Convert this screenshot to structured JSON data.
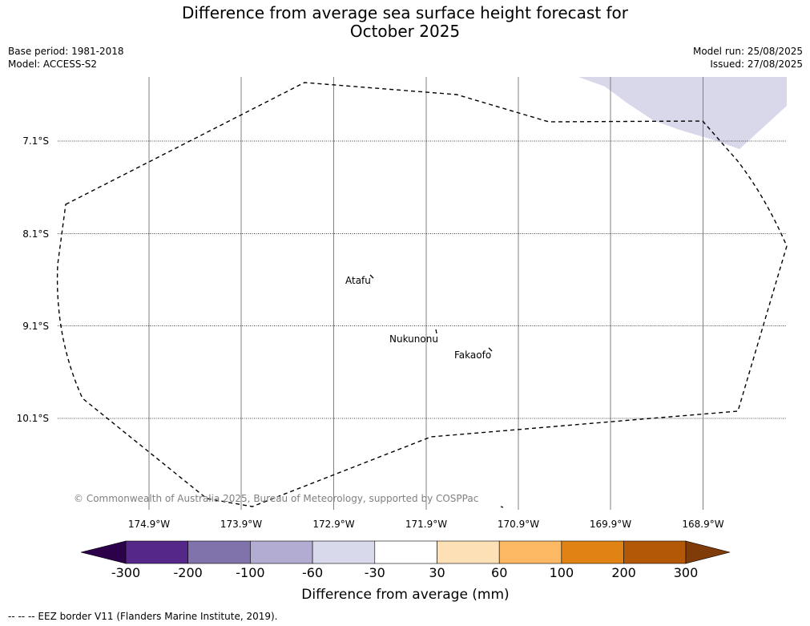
{
  "title_line1": "Difference from average sea surface height forecast for",
  "title_line2": "October 2025",
  "info": {
    "base_period": "Base period: 1981-2018",
    "model": "Model: ACCESS-S2",
    "model_run": "Model run: 25/08/2025",
    "issued": "Issued: 27/08/2025"
  },
  "map": {
    "lat_labels": [
      "7.1°S",
      "8.1°S",
      "9.1°S",
      "10.1°S"
    ],
    "lon_labels": [
      "174.9°W",
      "173.9°W",
      "172.9°W",
      "171.9°W",
      "170.9°W",
      "169.9°W",
      "168.9°W"
    ],
    "places": [
      "Atafu",
      "Nukunonu",
      "Fakaofo"
    ],
    "copyright": "© Commonwealth of Australia 2025, Bureau of Meteorology, supported by COSPPac",
    "shaded_color": "#d8d8ea"
  },
  "colorbar": {
    "title": "Difference from average (mm)",
    "ticks": [
      "-300",
      "-200",
      "-100",
      "-60",
      "-30",
      "30",
      "60",
      "100",
      "200",
      "300"
    ],
    "colors": [
      "#2d004b",
      "#542788",
      "#8073ac",
      "#b2abd2",
      "#d8daeb",
      "#ffffff",
      "#fee0b6",
      "#fdb863",
      "#e08214",
      "#b35806",
      "#7f3b08"
    ]
  },
  "footnote": "--  --  -- EEZ border V11 (Flanders Marine Institute, 2019)."
}
